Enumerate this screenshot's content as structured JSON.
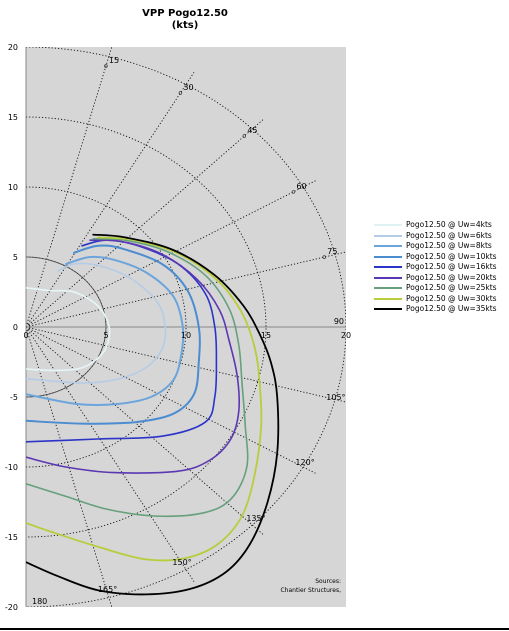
{
  "chart_data": {
    "type": "line",
    "subtype": "polar-speed-diagram",
    "title": "VPP Pogo12.50",
    "subtitle": "(kts)",
    "xlim": [
      0,
      20
    ],
    "ylim": [
      -20,
      20
    ],
    "x_ticks": [
      "0",
      "5",
      "10",
      "15",
      "20"
    ],
    "y_ticks": [
      "20",
      "15",
      "10",
      "5",
      "0",
      "-5",
      "-10",
      "-15",
      "-20"
    ],
    "angle_labels": [
      "15",
      "30",
      "45",
      "60",
      "75",
      "90",
      "105°",
      "120°",
      "135°",
      "150°",
      "165°",
      "180"
    ],
    "angles_deg": [
      15,
      30,
      45,
      60,
      75,
      90,
      105,
      120,
      135,
      150,
      165,
      180
    ],
    "speed_circles": [
      5,
      10,
      15,
      20
    ],
    "grid": true,
    "legend_position": "right",
    "source_note": [
      "Sources:",
      "Chantier Structures,"
    ],
    "series": [
      {
        "name": "Pogo12.50 @ Uw=4kts",
        "color": "#e6f6f6",
        "width": 1.6,
        "points": [
          [
            0,
            2.8
          ],
          [
            1.5,
            2.6
          ],
          [
            3,
            2.5
          ],
          [
            4.5,
            1.5
          ],
          [
            5.2,
            0
          ],
          [
            5.0,
            -1.5
          ],
          [
            4.2,
            -2.5
          ],
          [
            3.2,
            -3.0
          ],
          [
            1.5,
            -3.1
          ],
          [
            0,
            -3.0
          ]
        ]
      },
      {
        "name": "Pogo12.50 @ Uw=6kts",
        "color": "#b4cce6",
        "width": 1.6,
        "points": [
          [
            2,
            4.0
          ],
          [
            3,
            4.5
          ],
          [
            4.5,
            4.4
          ],
          [
            6.5,
            3.5
          ],
          [
            8.2,
            1.8
          ],
          [
            8.7,
            0
          ],
          [
            8.5,
            -1.6
          ],
          [
            7.5,
            -2.9
          ],
          [
            5.8,
            -3.7
          ],
          [
            3.6,
            -4.0
          ],
          [
            0,
            -3.7
          ]
        ]
      },
      {
        "name": "Pogo12.50 @ Uw=8kts",
        "color": "#6ca4dc",
        "width": 2.0,
        "points": [
          [
            2.5,
            4.5
          ],
          [
            4,
            5.0
          ],
          [
            5.5,
            4.8
          ],
          [
            7.5,
            3.9
          ],
          [
            9.2,
            2.2
          ],
          [
            9.8,
            0
          ],
          [
            9.7,
            -2.0
          ],
          [
            9.2,
            -3.8
          ],
          [
            7.8,
            -5.0
          ],
          [
            5.7,
            -5.5
          ],
          [
            3.2,
            -5.5
          ],
          [
            0,
            -4.8
          ]
        ]
      },
      {
        "name": "Pogo12.50 @ Uw=10kts",
        "color": "#4c8cd0",
        "width": 2.0,
        "points": [
          [
            3,
            5.3
          ],
          [
            4.5,
            5.8
          ],
          [
            6,
            5.6
          ],
          [
            8.5,
            4.5
          ],
          [
            10.1,
            2.6
          ],
          [
            10.8,
            0
          ],
          [
            10.8,
            -2.5
          ],
          [
            10.5,
            -4.8
          ],
          [
            9.2,
            -6.2
          ],
          [
            6.8,
            -6.8
          ],
          [
            3.5,
            -6.9
          ],
          [
            0,
            -6.7
          ]
        ]
      },
      {
        "name": "Pogo12.50 @ Uw=16kts",
        "color": "#2c34c8",
        "width": 1.6,
        "points": [
          [
            3.5,
            5.8
          ],
          [
            5,
            6.2
          ],
          [
            7,
            5.8
          ],
          [
            9.5,
            4.5
          ],
          [
            11.2,
            2.4
          ],
          [
            11.8,
            0
          ],
          [
            11.9,
            -2.5
          ],
          [
            11.8,
            -5.0
          ],
          [
            11.2,
            -6.8
          ],
          [
            8.5,
            -7.8
          ],
          [
            4.5,
            -8.0
          ],
          [
            0,
            -8.2
          ]
        ]
      },
      {
        "name": "Pogo12.50 @ Uw=20kts",
        "color": "#5a38b4",
        "width": 1.6,
        "points": [
          [
            4,
            6.2
          ],
          [
            6,
            6.1
          ],
          [
            8.5,
            5.2
          ],
          [
            10.7,
            3.4
          ],
          [
            12.1,
            1.2
          ],
          [
            12.7,
            -1.0
          ],
          [
            13.2,
            -3.5
          ],
          [
            13.3,
            -6.0
          ],
          [
            12.8,
            -8.0
          ],
          [
            11.5,
            -9.5
          ],
          [
            9.5,
            -10.3
          ],
          [
            5.5,
            -10.4
          ],
          [
            2.5,
            -10.0
          ],
          [
            0,
            -9.3
          ]
        ]
      },
      {
        "name": "Pogo12.50 @ Uw=25kts",
        "color": "#66a07c",
        "width": 1.6,
        "points": [
          [
            4.2,
            6.3
          ],
          [
            6.2,
            6.2
          ],
          [
            8.8,
            5.4
          ],
          [
            11.2,
            3.7
          ],
          [
            12.7,
            1.3
          ],
          [
            13.3,
            -1.3
          ],
          [
            13.5,
            -4.0
          ],
          [
            13.7,
            -7.0
          ],
          [
            13.8,
            -10.0
          ],
          [
            12.8,
            -12.3
          ],
          [
            11.0,
            -13.3
          ],
          [
            8.0,
            -13.5
          ],
          [
            5.0,
            -13.0
          ],
          [
            2.5,
            -12.1
          ],
          [
            0,
            -11.2
          ]
        ]
      },
      {
        "name": "Pogo12.50 @ Uw=30kts",
        "color": "#b8cc3c",
        "width": 1.8,
        "points": [
          [
            4.5,
            6.4
          ],
          [
            6.8,
            6.2
          ],
          [
            9.6,
            5.2
          ],
          [
            12.0,
            3.3
          ],
          [
            13.5,
            1.0
          ],
          [
            14.3,
            -1.5
          ],
          [
            14.6,
            -4.0
          ],
          [
            14.7,
            -7.0
          ],
          [
            14.3,
            -10.5
          ],
          [
            13.5,
            -13.5
          ],
          [
            12.0,
            -15.5
          ],
          [
            10.0,
            -16.5
          ],
          [
            7.5,
            -16.6
          ],
          [
            4.5,
            -15.7
          ],
          [
            1.5,
            -14.6
          ],
          [
            0,
            -14.0
          ]
        ]
      },
      {
        "name": "Pogo12.50 @ Uw=35kts",
        "color": "#000000",
        "width": 1.8,
        "points": [
          [
            4.2,
            6.6
          ],
          [
            6.2,
            6.4
          ],
          [
            9.2,
            5.5
          ],
          [
            11.8,
            3.7
          ],
          [
            13.6,
            1.5
          ],
          [
            14.6,
            -0.5
          ],
          [
            15.3,
            -2.5
          ],
          [
            15.7,
            -5.0
          ],
          [
            15.7,
            -9.0
          ],
          [
            15.1,
            -12.5
          ],
          [
            14.0,
            -15.5
          ],
          [
            12.5,
            -17.5
          ],
          [
            10.3,
            -18.7
          ],
          [
            7.5,
            -19.1
          ],
          [
            4.5,
            -18.8
          ],
          [
            2.0,
            -17.8
          ],
          [
            0,
            -16.8
          ]
        ]
      }
    ]
  }
}
